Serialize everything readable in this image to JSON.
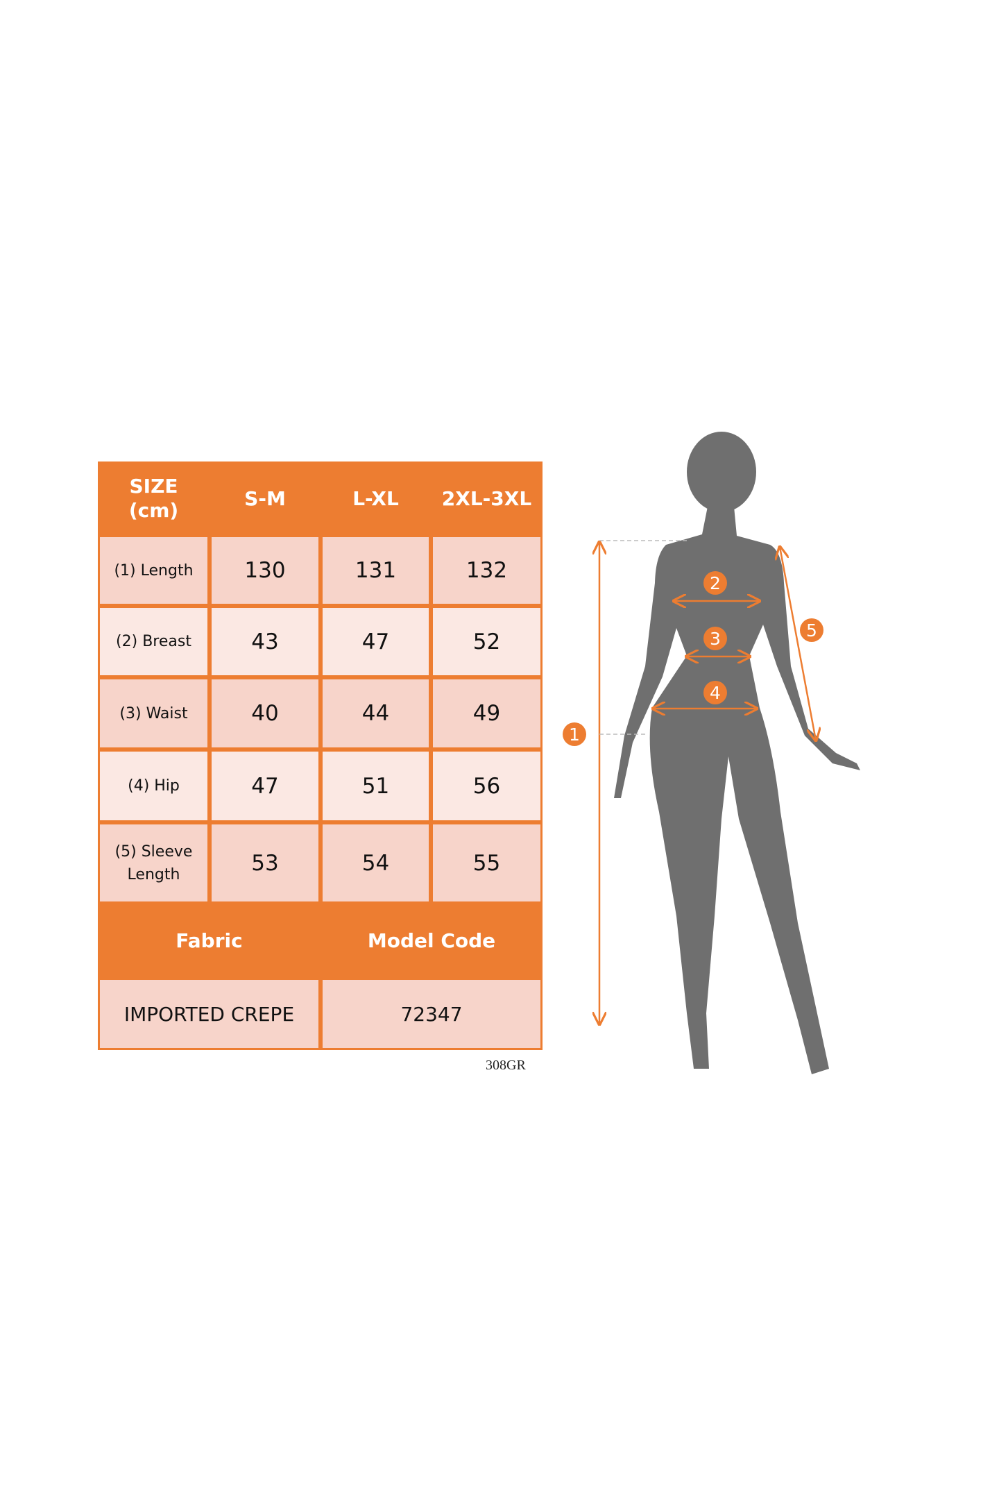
{
  "table": {
    "header": [
      "SIZE\n(cm)",
      "S-M",
      "L-XL",
      "2XL-3XL"
    ],
    "rows": [
      {
        "label": "(1) Length",
        "values": [
          "130",
          "131",
          "132"
        ]
      },
      {
        "label": "(2) Breast",
        "values": [
          "43",
          "47",
          "52"
        ]
      },
      {
        "label": "(3) Waist",
        "values": [
          "40",
          "44",
          "49"
        ]
      },
      {
        "label": "(4) Hip",
        "values": [
          "47",
          "51",
          "56"
        ]
      },
      {
        "label": "(5) Sleeve\nLength",
        "values": [
          "53",
          "54",
          "55"
        ]
      }
    ],
    "footer_header": [
      "Fabric",
      "Model Code"
    ],
    "footer_values": [
      "IMPORTED CREPE",
      "72347"
    ]
  },
  "code": "308GR",
  "figure": {
    "badges": [
      "1",
      "2",
      "3",
      "4",
      "5"
    ]
  },
  "colors": {
    "accent": "#ED7D31",
    "cell_dark": "#F7D4CA",
    "cell_light": "#FBE8E3",
    "silhouette": "#6F6F6F"
  }
}
